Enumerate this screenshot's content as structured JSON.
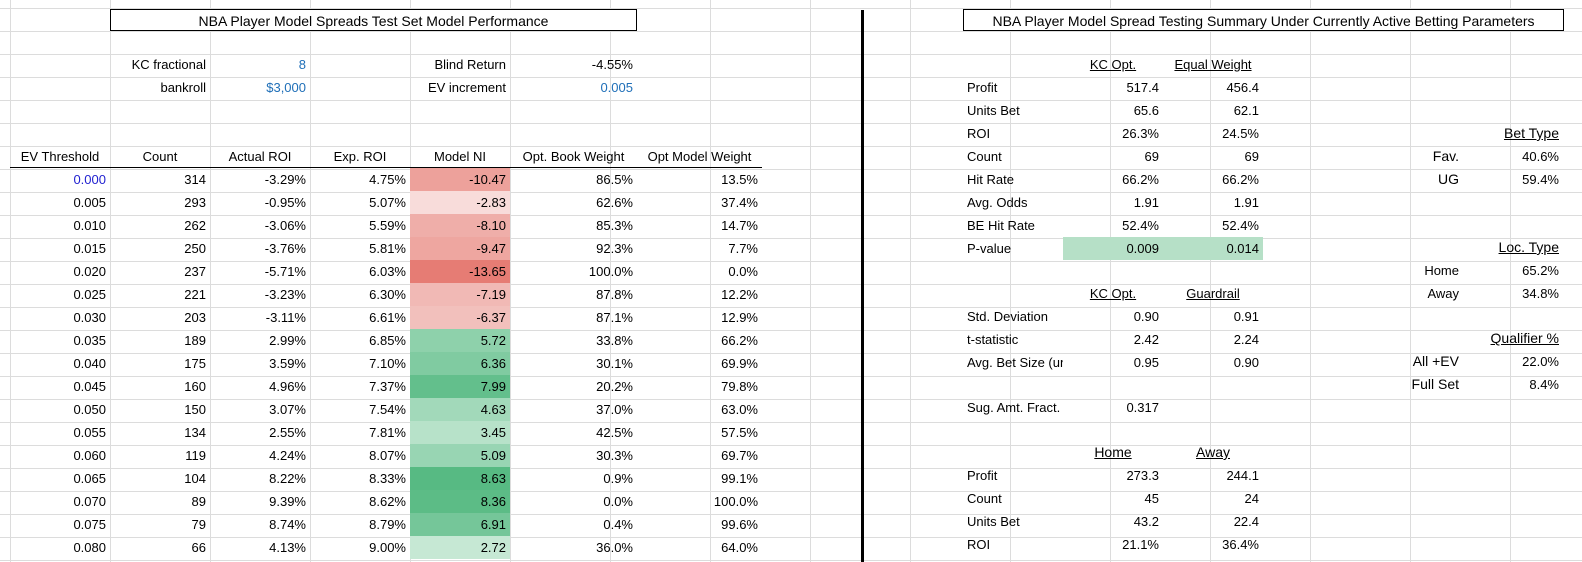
{
  "left": {
    "title": "NBA Player Model Spreads Test Set Model Performance",
    "params": {
      "kc_label": "KC fractional",
      "kc_value": "8",
      "bankroll_label": "bankroll",
      "bankroll_value": "$3,000",
      "blind_label": "Blind Return",
      "blind_value": "-4.55%",
      "ev_inc_label": "EV increment",
      "ev_inc_value": "0.005"
    },
    "columns": [
      "EV Threshold",
      "Count",
      "Actual ROI",
      "Exp. ROI",
      "Model NI",
      "Opt. Book Weight",
      "Opt Model Weight"
    ],
    "rows": [
      {
        "ev": "0.000",
        "count": "314",
        "actual": "-3.29%",
        "exp": "4.75%",
        "ni": "-10.47",
        "book": "86.5%",
        "model": "13.5%",
        "color": "#eda19b"
      },
      {
        "ev": "0.005",
        "count": "293",
        "actual": "-0.95%",
        "exp": "5.07%",
        "ni": "-2.83",
        "book": "62.6%",
        "model": "37.4%",
        "color": "#f8dcda"
      },
      {
        "ev": "0.010",
        "count": "262",
        "actual": "-3.06%",
        "exp": "5.59%",
        "ni": "-8.10",
        "book": "85.3%",
        "model": "14.7%",
        "color": "#efaea9"
      },
      {
        "ev": "0.015",
        "count": "250",
        "actual": "-3.76%",
        "exp": "5.81%",
        "ni": "-9.47",
        "book": "92.3%",
        "model": "7.7%",
        "color": "#eea6a0"
      },
      {
        "ev": "0.020",
        "count": "237",
        "actual": "-5.71%",
        "exp": "6.03%",
        "ni": "-13.65",
        "book": "100.0%",
        "model": "0.0%",
        "color": "#e67c74"
      },
      {
        "ev": "0.025",
        "count": "221",
        "actual": "-3.23%",
        "exp": "6.30%",
        "ni": "-7.19",
        "book": "87.8%",
        "model": "12.2%",
        "color": "#f1b9b5"
      },
      {
        "ev": "0.030",
        "count": "203",
        "actual": "-3.11%",
        "exp": "6.61%",
        "ni": "-6.37",
        "book": "87.1%",
        "model": "12.9%",
        "color": "#f2c0bc"
      },
      {
        "ev": "0.035",
        "count": "189",
        "actual": "2.99%",
        "exp": "6.85%",
        "ni": "5.72",
        "book": "33.8%",
        "model": "66.2%",
        "color": "#8ed1ab"
      },
      {
        "ev": "0.040",
        "count": "175",
        "actual": "3.59%",
        "exp": "7.10%",
        "ni": "6.36",
        "book": "30.1%",
        "model": "69.9%",
        "color": "#80cba1"
      },
      {
        "ev": "0.045",
        "count": "160",
        "actual": "4.96%",
        "exp": "7.37%",
        "ni": "7.99",
        "book": "20.2%",
        "model": "79.8%",
        "color": "#63bf8c"
      },
      {
        "ev": "0.050",
        "count": "150",
        "actual": "3.07%",
        "exp": "7.54%",
        "ni": "4.63",
        "book": "37.0%",
        "model": "63.0%",
        "color": "#a2d9ba"
      },
      {
        "ev": "0.055",
        "count": "134",
        "actual": "2.55%",
        "exp": "7.81%",
        "ni": "3.45",
        "book": "42.5%",
        "model": "57.5%",
        "color": "#b7e2c9"
      },
      {
        "ev": "0.060",
        "count": "119",
        "actual": "4.24%",
        "exp": "8.07%",
        "ni": "5.09",
        "book": "30.3%",
        "model": "69.7%",
        "color": "#98d5b3"
      },
      {
        "ev": "0.065",
        "count": "104",
        "actual": "8.22%",
        "exp": "8.33%",
        "ni": "8.63",
        "book": "0.9%",
        "model": "99.1%",
        "color": "#57ba83"
      },
      {
        "ev": "0.070",
        "count": "89",
        "actual": "9.39%",
        "exp": "8.62%",
        "ni": "8.36",
        "book": "0.0%",
        "model": "100.0%",
        "color": "#5cbc86"
      },
      {
        "ev": "0.075",
        "count": "79",
        "actual": "8.74%",
        "exp": "8.79%",
        "ni": "6.91",
        "book": "0.4%",
        "model": "99.6%",
        "color": "#75c699"
      },
      {
        "ev": "0.080",
        "count": "66",
        "actual": "4.13%",
        "exp": "9.00%",
        "ni": "2.72",
        "book": "36.0%",
        "model": "64.0%",
        "color": "#c6e8d4"
      }
    ]
  },
  "right": {
    "title": "NBA Player Model Spread Testing Summary Under Currently Active Betting Parameters",
    "summary_headers": [
      "KC Opt.",
      "Equal Weight"
    ],
    "summary_rows": [
      {
        "label": "Profit",
        "a": "517.4",
        "b": "456.4"
      },
      {
        "label": "Units Bet",
        "a": "65.6",
        "b": "62.1"
      },
      {
        "label": "ROI",
        "a": "26.3%",
        "b": "24.5%"
      },
      {
        "label": "Count",
        "a": "69",
        "b": "69"
      },
      {
        "label": "Hit Rate",
        "a": "66.2%",
        "b": "66.2%"
      },
      {
        "label": "Avg. Odds",
        "a": "1.91",
        "b": "1.91"
      },
      {
        "label": "BE Hit Rate",
        "a": "52.4%",
        "b": "52.4%"
      },
      {
        "label": "P-value",
        "a": "0.009",
        "b": "0.014"
      }
    ],
    "stats_headers": [
      "KC Opt.",
      "Guardrail"
    ],
    "stats_rows": [
      {
        "label": "Std. Deviation",
        "a": "0.90",
        "b": "0.91"
      },
      {
        "label": "t-statistic",
        "a": "2.42",
        "b": "2.24"
      },
      {
        "label": "Avg. Bet Size (un",
        "a": "0.95",
        "b": "0.90"
      }
    ],
    "sug_label": "Sug. Amt. Fract.",
    "sug_value": "0.317",
    "loc_headers": [
      "Home",
      "Away"
    ],
    "loc_rows": [
      {
        "label": "Profit",
        "a": "273.3",
        "b": "244.1"
      },
      {
        "label": "Count",
        "a": "45",
        "b": "24"
      },
      {
        "label": "Units Bet",
        "a": "43.2",
        "b": "22.4"
      },
      {
        "label": "ROI",
        "a": "21.1%",
        "b": "36.4%"
      }
    ],
    "bet_type": {
      "title": "Bet Type",
      "rows": [
        {
          "label": "Fav.",
          "value": "40.6%"
        },
        {
          "label": "UG",
          "value": "59.4%"
        }
      ]
    },
    "loc_type": {
      "title": "Loc. Type",
      "rows": [
        {
          "label": "Home",
          "value": "65.2%"
        },
        {
          "label": "Away",
          "value": "34.8%"
        }
      ]
    },
    "qualifier": {
      "title": "Qualifier %",
      "rows": [
        {
          "label": "All +EV",
          "value": "22.0%"
        },
        {
          "label": "Full Set",
          "value": "8.4%"
        }
      ]
    }
  }
}
